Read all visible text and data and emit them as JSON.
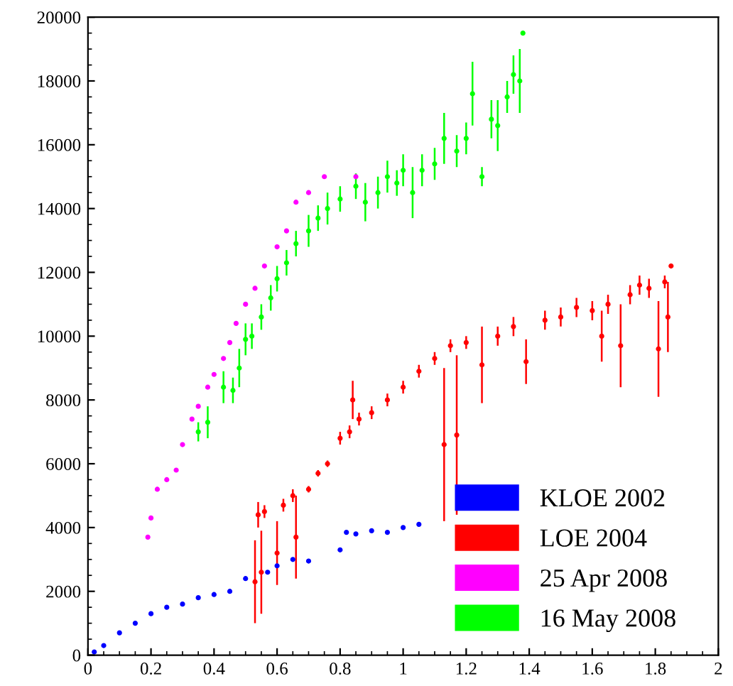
{
  "chart_data": {
    "type": "scatter",
    "xlim": [
      0,
      2
    ],
    "ylim": [
      0,
      20000
    ],
    "xticks": [
      0,
      0.2,
      0.4,
      0.6,
      0.8,
      1,
      1.2,
      1.4,
      1.6,
      1.8,
      2
    ],
    "yticks": [
      0,
      2000,
      4000,
      6000,
      8000,
      10000,
      12000,
      14000,
      16000,
      18000,
      20000
    ],
    "grid": false,
    "legend": "bottom right",
    "marker": "circle",
    "series": [
      {
        "name": "KLOE 2002",
        "color": "#0000ff",
        "x": [
          0.02,
          0.05,
          0.1,
          0.15,
          0.2,
          0.25,
          0.3,
          0.35,
          0.4,
          0.45,
          0.5,
          0.57,
          0.6,
          0.65,
          0.7,
          0.8,
          0.82,
          0.85,
          0.9,
          0.95,
          1.0,
          1.05
        ],
        "values": [
          100,
          300,
          700,
          1000,
          1300,
          1500,
          1600,
          1800,
          1900,
          2000,
          2400,
          2600,
          2800,
          3000,
          2950,
          3300,
          3850,
          3800,
          3900,
          3850,
          4000,
          4100
        ]
      },
      {
        "name": "LOE 2004",
        "color": "#ff0000",
        "x": [
          0.53,
          0.54,
          0.55,
          0.56,
          0.6,
          0.62,
          0.65,
          0.66,
          0.7,
          0.73,
          0.76,
          0.8,
          0.83,
          0.84,
          0.86,
          0.9,
          0.95,
          1.0,
          1.05,
          1.1,
          1.13,
          1.15,
          1.17,
          1.2,
          1.25,
          1.3,
          1.35,
          1.39,
          1.45,
          1.5,
          1.55,
          1.6,
          1.63,
          1.65,
          1.69,
          1.72,
          1.75,
          1.78,
          1.81,
          1.83,
          1.84,
          1.85
        ],
        "values": [
          2300,
          4400,
          2600,
          4500,
          3200,
          4700,
          5000,
          3700,
          5200,
          5700,
          6000,
          6800,
          7000,
          8000,
          7400,
          7600,
          8000,
          8400,
          8900,
          9300,
          6600,
          9700,
          6900,
          9800,
          9100,
          10000,
          10300,
          9200,
          10500,
          10600,
          10900,
          10800,
          10000,
          11000,
          9700,
          11300,
          11600,
          11500,
          9600,
          11700,
          10600,
          12200
        ],
        "errors": [
          1300,
          400,
          1300,
          200,
          1000,
          200,
          200,
          1300,
          100,
          100,
          100,
          200,
          200,
          600,
          200,
          200,
          200,
          200,
          200,
          200,
          2400,
          200,
          2500,
          200,
          1200,
          300,
          300,
          700,
          300,
          300,
          300,
          300,
          800,
          300,
          1300,
          300,
          300,
          300,
          1500,
          200,
          1100,
          null
        ]
      },
      {
        "name": "25 Apr 2008",
        "color": "#ff00ff",
        "x": [
          0.19,
          0.2,
          0.22,
          0.25,
          0.28,
          0.3,
          0.33,
          0.35,
          0.38,
          0.4,
          0.43,
          0.45,
          0.47,
          0.5,
          0.53,
          0.56,
          0.6,
          0.63,
          0.66,
          0.7,
          0.75,
          0.85
        ],
        "values": [
          3700,
          4300,
          5200,
          5500,
          5800,
          6600,
          7400,
          7800,
          8400,
          8800,
          9300,
          9800,
          10400,
          11000,
          11500,
          12200,
          12800,
          13300,
          14200,
          14500,
          15000,
          15000
        ]
      },
      {
        "name": "16 May 2008",
        "color": "#00ff00",
        "x": [
          0.35,
          0.38,
          0.43,
          0.46,
          0.48,
          0.5,
          0.52,
          0.55,
          0.58,
          0.6,
          0.63,
          0.66,
          0.7,
          0.73,
          0.76,
          0.8,
          0.85,
          0.88,
          0.92,
          0.95,
          0.98,
          1.0,
          1.03,
          1.06,
          1.1,
          1.13,
          1.17,
          1.2,
          1.22,
          1.25,
          1.28,
          1.3,
          1.33,
          1.35,
          1.37,
          1.38
        ],
        "values": [
          7000,
          7300,
          8400,
          8300,
          9000,
          9900,
          10000,
          10600,
          11200,
          11800,
          12300,
          12900,
          13300,
          13700,
          14000,
          14300,
          14700,
          14200,
          14500,
          15000,
          14800,
          15200,
          14500,
          15200,
          15400,
          16200,
          15800,
          16200,
          17600,
          15000,
          16800,
          16600,
          17500,
          18200,
          18000,
          19500
        ],
        "errors": [
          300,
          500,
          500,
          400,
          600,
          500,
          400,
          400,
          400,
          400,
          400,
          400,
          500,
          400,
          500,
          400,
          400,
          600,
          500,
          500,
          400,
          500,
          800,
          500,
          500,
          800,
          500,
          500,
          1000,
          300,
          600,
          800,
          500,
          600,
          1000,
          null
        ]
      }
    ]
  }
}
